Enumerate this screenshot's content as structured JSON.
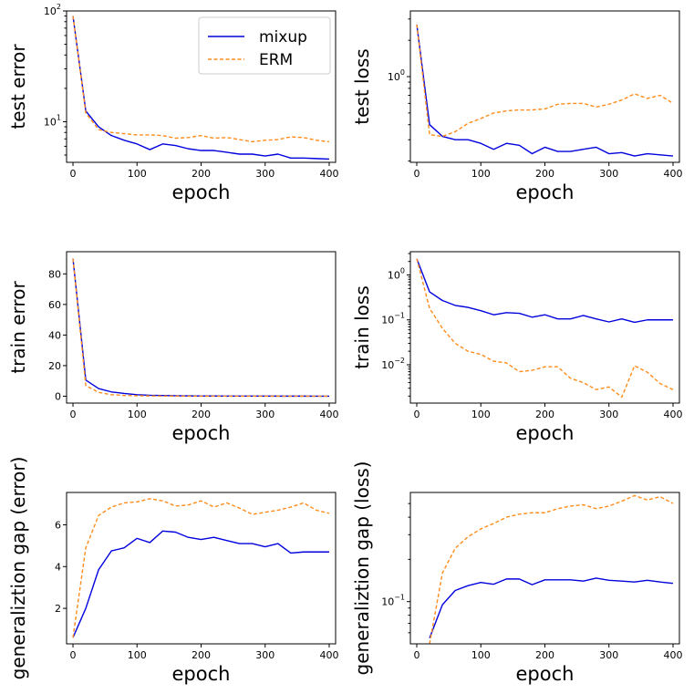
{
  "chart_data": [
    {
      "id": "test-error",
      "type": "line",
      "title": "",
      "xlabel": "epoch",
      "ylabel": "test error",
      "yscale": "log",
      "xlim": [
        -10,
        410
      ],
      "ylim": [
        4.3,
        100
      ],
      "xticks": [
        0,
        100,
        200,
        300,
        400
      ],
      "xtick_labels": [
        "0",
        "100",
        "200",
        "300",
        "400"
      ],
      "yticks": [
        10,
        100
      ],
      "ytick_labels": [
        "10^1",
        "10^2"
      ],
      "legend": "top-right",
      "series": [
        {
          "name": "mixup",
          "color": "#0000dd",
          "style": "solid",
          "x": [
            0,
            20,
            40,
            60,
            80,
            100,
            120,
            140,
            160,
            180,
            200,
            220,
            240,
            260,
            280,
            300,
            320,
            340,
            360,
            380,
            400
          ],
          "y": [
            90,
            12.5,
            9,
            7.5,
            6.8,
            6.3,
            5.6,
            6.3,
            6.1,
            5.7,
            5.5,
            5.5,
            5.3,
            5.1,
            5.1,
            4.9,
            5.1,
            4.7,
            4.7,
            4.65,
            4.6
          ]
        },
        {
          "name": "ERM",
          "color": "#ff8c1a",
          "style": "dashed",
          "x": [
            0,
            20,
            40,
            60,
            80,
            100,
            120,
            140,
            160,
            180,
            200,
            220,
            240,
            260,
            280,
            300,
            320,
            340,
            360,
            380,
            400
          ],
          "y": [
            90,
            12,
            8.5,
            8,
            7.8,
            7.6,
            7.6,
            7.5,
            7.1,
            7.2,
            7.5,
            7.1,
            7.2,
            6.9,
            6.6,
            6.8,
            6.9,
            7.3,
            7.2,
            6.8,
            6.6
          ]
        }
      ]
    },
    {
      "id": "test-loss",
      "type": "line",
      "title": "",
      "xlabel": "epoch",
      "ylabel": "test loss",
      "yscale": "log",
      "xlim": [
        -10,
        410
      ],
      "ylim": [
        0.195,
        3.5
      ],
      "xticks": [
        0,
        100,
        200,
        300,
        400
      ],
      "xtick_labels": [
        "0",
        "100",
        "200",
        "300",
        "400"
      ],
      "yticks": [
        1
      ],
      "ytick_labels": [
        "10^0"
      ],
      "series": [
        {
          "name": "mixup",
          "x": [
            0,
            20,
            40,
            60,
            80,
            100,
            120,
            140,
            160,
            180,
            200,
            220,
            240,
            260,
            280,
            300,
            320,
            340,
            360,
            380,
            400
          ],
          "y": [
            2.7,
            0.4,
            0.32,
            0.3,
            0.3,
            0.28,
            0.25,
            0.28,
            0.27,
            0.23,
            0.26,
            0.24,
            0.24,
            0.25,
            0.26,
            0.23,
            0.235,
            0.22,
            0.23,
            0.225,
            0.22
          ]
        },
        {
          "name": "ERM",
          "x": [
            0,
            20,
            40,
            60,
            80,
            100,
            120,
            140,
            160,
            180,
            200,
            220,
            240,
            260,
            280,
            300,
            320,
            340,
            360,
            380,
            400
          ],
          "y": [
            2.7,
            0.33,
            0.32,
            0.35,
            0.41,
            0.45,
            0.5,
            0.52,
            0.53,
            0.53,
            0.54,
            0.59,
            0.6,
            0.6,
            0.56,
            0.59,
            0.64,
            0.72,
            0.66,
            0.7,
            0.6
          ]
        }
      ]
    },
    {
      "id": "train-error",
      "type": "line",
      "title": "",
      "xlabel": "epoch",
      "ylabel": "train error",
      "yscale": "linear",
      "xlim": [
        -10,
        410
      ],
      "ylim": [
        -4.5,
        94.5
      ],
      "xticks": [
        0,
        100,
        200,
        300,
        400
      ],
      "xtick_labels": [
        "0",
        "100",
        "200",
        "300",
        "400"
      ],
      "yticks": [
        0,
        20,
        40,
        60,
        80
      ],
      "ytick_labels": [
        "0",
        "20",
        "40",
        "60",
        "80"
      ],
      "series": [
        {
          "name": "mixup",
          "x": [
            0,
            20,
            40,
            60,
            80,
            100,
            120,
            140,
            160,
            180,
            200,
            220,
            240,
            260,
            280,
            300,
            320,
            340,
            360,
            380,
            400
          ],
          "y": [
            90,
            10.5,
            5,
            2.8,
            1.8,
            1,
            0.6,
            0.45,
            0.3,
            0.2,
            0.15,
            0.12,
            0.1,
            0.08,
            0.07,
            0.06,
            0.05,
            0.05,
            0.05,
            0.04,
            0.04
          ]
        },
        {
          "name": "ERM",
          "x": [
            0,
            20,
            40,
            60,
            80,
            100,
            120,
            140,
            160,
            180,
            200,
            220,
            240,
            260,
            280,
            300,
            320,
            340,
            360,
            380,
            400
          ],
          "y": [
            90,
            7,
            2.5,
            1,
            0.5,
            0.3,
            0.2,
            0.1,
            0.05,
            0.03,
            0.02,
            0.02,
            0.01,
            0.01,
            0.01,
            0.01,
            0.01,
            0.01,
            0.01,
            0.01,
            0.01
          ]
        }
      ]
    },
    {
      "id": "train-loss",
      "type": "line",
      "title": "",
      "xlabel": "epoch",
      "ylabel": "train loss",
      "yscale": "log",
      "xlim": [
        -10,
        410
      ],
      "ylim": [
        0.0014,
        3.3
      ],
      "xticks": [
        0,
        100,
        200,
        300,
        400
      ],
      "xtick_labels": [
        "0",
        "100",
        "200",
        "300",
        "400"
      ],
      "yticks": [
        0.01,
        0.1,
        1
      ],
      "ytick_labels": [
        "10^-2",
        "10^-1",
        "10^0"
      ],
      "series": [
        {
          "name": "mixup",
          "x": [
            0,
            20,
            40,
            60,
            80,
            100,
            120,
            140,
            160,
            180,
            200,
            220,
            240,
            260,
            280,
            300,
            320,
            340,
            360,
            380,
            400
          ],
          "y": [
            2.3,
            0.42,
            0.27,
            0.21,
            0.19,
            0.16,
            0.13,
            0.145,
            0.14,
            0.115,
            0.13,
            0.105,
            0.105,
            0.125,
            0.105,
            0.09,
            0.105,
            0.088,
            0.1,
            0.1,
            0.1
          ]
        },
        {
          "name": "ERM",
          "x": [
            0,
            20,
            40,
            60,
            80,
            100,
            120,
            140,
            160,
            180,
            200,
            220,
            240,
            260,
            280,
            300,
            320,
            340,
            360,
            380,
            400
          ],
          "y": [
            2.3,
            0.18,
            0.065,
            0.03,
            0.02,
            0.017,
            0.012,
            0.011,
            0.007,
            0.0075,
            0.009,
            0.009,
            0.005,
            0.004,
            0.0028,
            0.0032,
            0.0019,
            0.0095,
            0.0068,
            0.0038,
            0.0028
          ]
        }
      ]
    },
    {
      "id": "gap-error",
      "type": "line",
      "title": "",
      "xlabel": "epoch",
      "ylabel": "generaliztion gap (error)",
      "yscale": "linear",
      "xlim": [
        -10,
        410
      ],
      "ylim": [
        0.3,
        7.55
      ],
      "xticks": [
        0,
        100,
        200,
        300,
        400
      ],
      "xtick_labels": [
        "0",
        "100",
        "200",
        "300",
        "400"
      ],
      "yticks": [
        2,
        4,
        6
      ],
      "ytick_labels": [
        "2",
        "4",
        "6"
      ],
      "series": [
        {
          "name": "mixup",
          "x": [
            0,
            20,
            40,
            60,
            80,
            100,
            120,
            140,
            160,
            180,
            200,
            220,
            240,
            260,
            280,
            300,
            320,
            340,
            360,
            380,
            400
          ],
          "y": [
            0.6,
            2,
            3.85,
            4.75,
            4.9,
            5.35,
            5.15,
            5.7,
            5.65,
            5.4,
            5.3,
            5.4,
            5.25,
            5.1,
            5.1,
            4.95,
            5.1,
            4.65,
            4.7,
            4.7,
            4.7
          ]
        },
        {
          "name": "ERM",
          "x": [
            0,
            20,
            40,
            60,
            80,
            100,
            120,
            140,
            160,
            180,
            200,
            220,
            240,
            260,
            280,
            300,
            320,
            340,
            360,
            380,
            400
          ],
          "y": [
            0.6,
            4.9,
            6.45,
            6.85,
            7.05,
            7.1,
            7.25,
            7.15,
            6.9,
            6.95,
            7.15,
            6.85,
            7.05,
            6.8,
            6.5,
            6.6,
            6.7,
            6.85,
            7.05,
            6.7,
            6.55
          ]
        }
      ]
    },
    {
      "id": "gap-loss",
      "type": "line",
      "title": "",
      "xlabel": "epoch",
      "ylabel": "generaliztion gap (loss)",
      "yscale": "log",
      "xlim": [
        -10,
        410
      ],
      "ylim": [
        0.05,
        0.6
      ],
      "xticks": [
        0,
        100,
        200,
        300,
        400
      ],
      "xtick_labels": [
        "0",
        "100",
        "200",
        "300",
        "400"
      ],
      "yticks": [
        0.1
      ],
      "ytick_labels": [
        "10^-1"
      ],
      "series": [
        {
          "name": "mixup",
          "x": [
            20,
            40,
            60,
            80,
            100,
            120,
            140,
            160,
            180,
            200,
            220,
            240,
            260,
            280,
            300,
            320,
            340,
            360,
            380,
            400
          ],
          "y": [
            0.055,
            0.095,
            0.12,
            0.13,
            0.137,
            0.133,
            0.145,
            0.145,
            0.132,
            0.143,
            0.143,
            0.143,
            0.14,
            0.147,
            0.142,
            0.14,
            0.138,
            0.142,
            0.138,
            0.135
          ]
        },
        {
          "name": "ERM",
          "x": [
            20,
            40,
            60,
            80,
            100,
            120,
            140,
            160,
            180,
            200,
            220,
            240,
            260,
            280,
            300,
            320,
            340,
            360,
            380,
            400
          ],
          "y": [
            0.05,
            0.16,
            0.24,
            0.29,
            0.33,
            0.36,
            0.4,
            0.42,
            0.43,
            0.43,
            0.46,
            0.48,
            0.49,
            0.46,
            0.48,
            0.52,
            0.57,
            0.53,
            0.56,
            0.5
          ]
        }
      ]
    }
  ],
  "legend": {
    "entries": [
      {
        "name": "mixup",
        "color": "#0000dd",
        "style": "solid"
      },
      {
        "name": "ERM",
        "color": "#ff8c1a",
        "style": "dashed"
      }
    ]
  }
}
